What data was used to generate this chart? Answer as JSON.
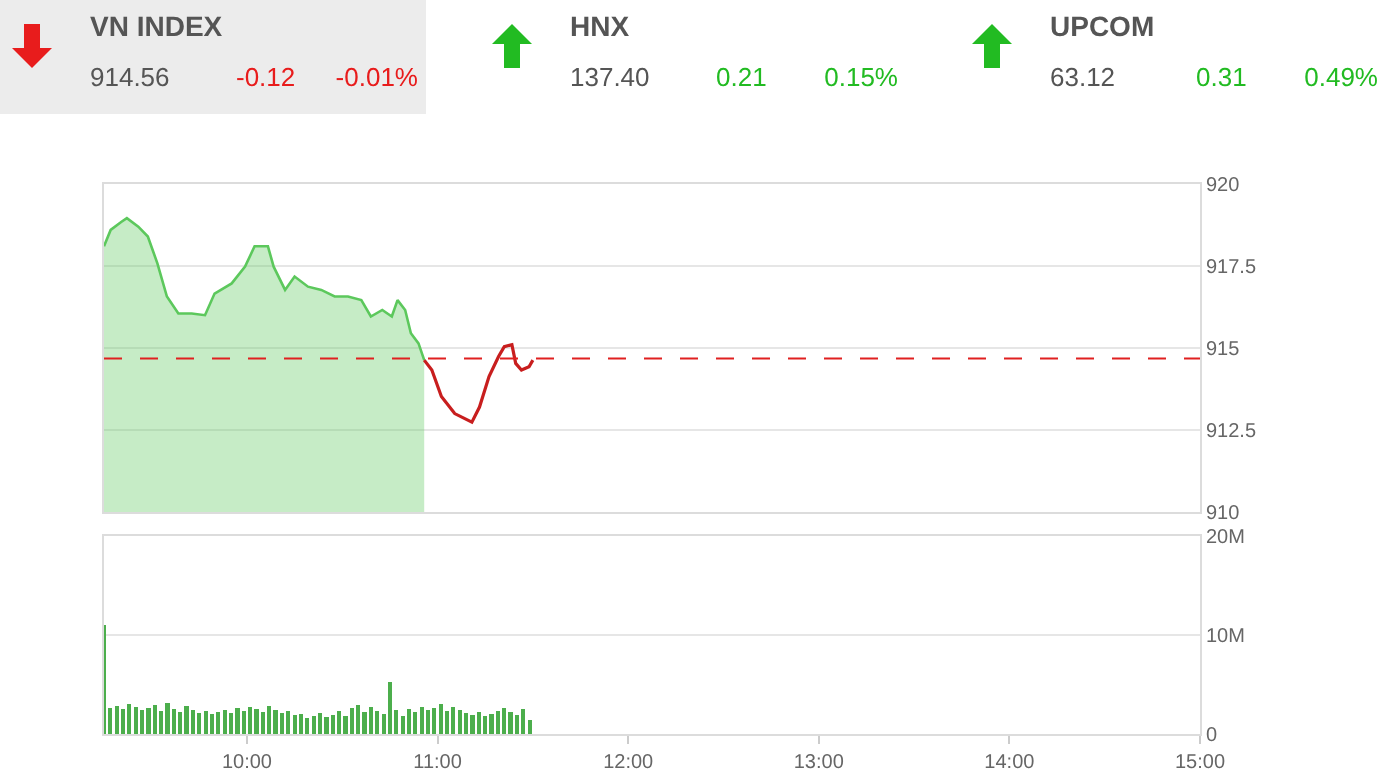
{
  "chart_data": [
    {
      "type": "other",
      "annotations": [
        "VN INDEX",
        "914.56",
        "-0.12",
        "-0.01%",
        "HNX",
        "137.40",
        "0.21",
        "0.15%",
        "UPCOM",
        "63.12",
        "0.31",
        "0.49%"
      ]
    },
    {
      "type": "area",
      "x": [
        9.25,
        9.285,
        9.34,
        9.37,
        9.43,
        9.48,
        9.53,
        9.58,
        9.64,
        9.71,
        9.78,
        9.83,
        9.92,
        9.99,
        10.04,
        10.11,
        10.14,
        10.2,
        10.25,
        10.32,
        10.39,
        10.46,
        10.53,
        10.6,
        10.65,
        10.71,
        10.76,
        10.79,
        10.83,
        10.86,
        10.9,
        10.93,
        10.97,
        11.02,
        11.09,
        11.18,
        11.22,
        11.27,
        11.32,
        11.35,
        11.39,
        11.41,
        11.44,
        11.48,
        11.5
      ],
      "series": [
        {
          "type": "area",
          "color": "#5cc85c",
          "values": [
            918.1,
            918.6,
            918.84,
            918.96,
            918.7,
            918.4,
            917.58,
            916.57,
            916.05,
            916.05,
            916.0,
            916.66,
            916.97,
            917.48,
            918.1,
            918.1,
            917.48,
            916.77,
            917.18,
            916.87,
            916.77,
            916.57,
            916.57,
            916.46,
            915.96,
            916.16,
            915.96,
            916.46,
            916.16,
            915.45,
            915.14,
            914.63,
            null,
            null,
            null,
            null,
            null,
            null,
            null,
            null,
            null,
            null,
            null,
            null,
            null
          ]
        },
        {
          "type": "line",
          "color": "#c81e1e",
          "values": [
            null,
            null,
            null,
            null,
            null,
            null,
            null,
            null,
            null,
            null,
            null,
            null,
            null,
            null,
            null,
            null,
            null,
            null,
            null,
            null,
            null,
            null,
            null,
            null,
            null,
            null,
            null,
            null,
            null,
            null,
            null,
            914.63,
            914.33,
            913.52,
            913.0,
            912.74,
            913.2,
            914.13,
            914.74,
            915.04,
            915.1,
            914.53,
            914.33,
            914.43,
            914.63
          ]
        }
      ],
      "xlim": [
        9.25,
        15
      ],
      "ylim": [
        910,
        920
      ],
      "yticks": [
        910,
        912.5,
        915,
        917.5,
        920
      ],
      "grid": "y",
      "tick_labels": "y",
      "ref_lines": [
        {
          "axis": "y",
          "value": 914.68,
          "color": "#e02020",
          "line_style": "dashed"
        }
      ]
    },
    {
      "type": "bar",
      "x": [
        9.25,
        9.283,
        9.317,
        9.35,
        9.383,
        9.417,
        9.45,
        9.483,
        9.517,
        9.55,
        9.583,
        9.617,
        9.65,
        9.683,
        9.717,
        9.75,
        9.783,
        9.817,
        9.85,
        9.883,
        9.917,
        9.95,
        9.983,
        10.017,
        10.05,
        10.083,
        10.117,
        10.15,
        10.183,
        10.217,
        10.25,
        10.283,
        10.317,
        10.35,
        10.383,
        10.417,
        10.45,
        10.483,
        10.517,
        10.55,
        10.583,
        10.617,
        10.65,
        10.683,
        10.717,
        10.75,
        10.783,
        10.817,
        10.85,
        10.883,
        10.917,
        10.95,
        10.983,
        11.017,
        11.05,
        11.083,
        11.117,
        11.15,
        11.183,
        11.217,
        11.25,
        11.283,
        11.317,
        11.35,
        11.383,
        11.417,
        11.45,
        11.483
      ],
      "values": [
        11000000,
        2600000,
        2800000,
        2500000,
        3000000,
        2700000,
        2400000,
        2600000,
        2900000,
        2300000,
        3100000,
        2500000,
        2200000,
        2800000,
        2400000,
        2100000,
        2300000,
        2000000,
        2200000,
        2400000,
        2100000,
        2600000,
        2300000,
        2700000,
        2500000,
        2200000,
        2800000,
        2400000,
        2100000,
        2300000,
        1900000,
        2000000,
        1600000,
        1800000,
        2100000,
        1700000,
        1900000,
        2300000,
        1800000,
        2600000,
        2900000,
        2200000,
        2700000,
        2300000,
        2000000,
        5300000,
        2400000,
        1800000,
        2500000,
        2200000,
        2700000,
        2400000,
        2600000,
        3000000,
        2300000,
        2700000,
        2400000,
        2100000,
        1900000,
        2200000,
        1800000,
        2000000,
        2300000,
        2600000,
        2200000,
        1900000,
        2500000,
        1400000
      ],
      "color": "#4cae4c",
      "xlim": [
        9.25,
        15
      ],
      "xticks": [
        {
          "value": 10,
          "label": "10:00"
        },
        {
          "value": 11,
          "label": "11:00"
        },
        {
          "value": 12,
          "label": "12:00"
        },
        {
          "value": 13,
          "label": "13:00"
        },
        {
          "value": 14,
          "label": "14:00"
        },
        {
          "value": 15,
          "label": "15:00"
        }
      ],
      "ylim": [
        0,
        20000000
      ],
      "yticks": [
        {
          "value": 0,
          "label": "0"
        },
        {
          "value": 10000000,
          "label": "10M"
        },
        {
          "value": 20000000,
          "label": "20M"
        }
      ],
      "grid": "y"
    }
  ]
}
